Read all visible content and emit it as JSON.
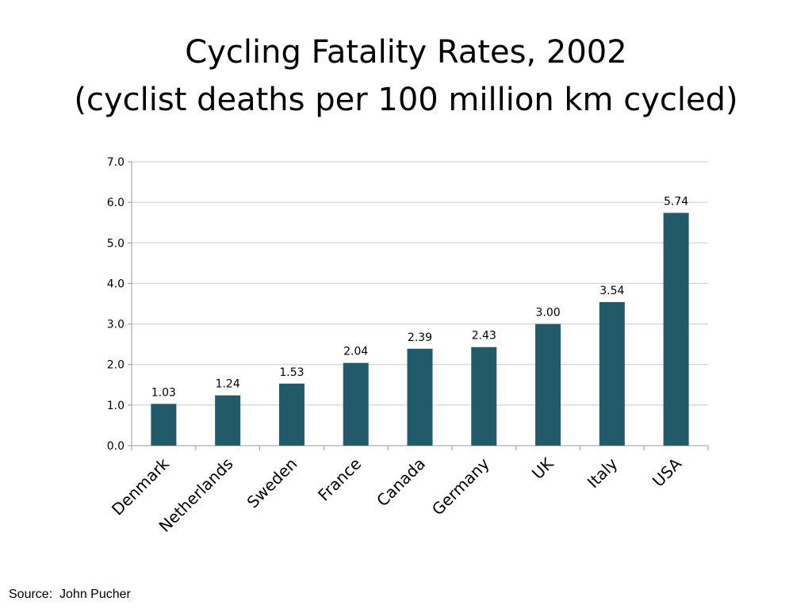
{
  "title": {
    "line1": "Cycling Fatality Rates, 2002",
    "line2": "(cyclist deaths per 100 million km cycled)"
  },
  "source": "Source:  John Pucher",
  "colors": {
    "bar": "#235a69",
    "grid": "#cccccc",
    "axis": "#999999"
  },
  "chart_data": {
    "type": "bar",
    "title": "Cycling Fatality Rates, 2002 (cyclist deaths per 100 million km cycled)",
    "xlabel": "",
    "ylabel": "",
    "categories": [
      "Denmark",
      "Netherlands",
      "Sweden",
      "France",
      "Canada",
      "Germany",
      "UK",
      "Italy",
      "USA"
    ],
    "values": [
      1.03,
      1.24,
      1.53,
      2.04,
      2.39,
      2.43,
      3.0,
      3.54,
      5.74
    ],
    "data_labels": [
      "1.03",
      "1.24",
      "1.53",
      "2.04",
      "2.39",
      "2.43",
      "3.00",
      "3.54",
      "5.74"
    ],
    "ylim": [
      0,
      7
    ],
    "yticks": [
      0,
      1,
      2,
      3,
      4,
      5,
      6,
      7
    ],
    "ytick_labels": [
      "0.0",
      "1.0",
      "2.0",
      "3.0",
      "4.0",
      "5.0",
      "6.0",
      "7.0"
    ],
    "grid": true,
    "legend": "none"
  }
}
